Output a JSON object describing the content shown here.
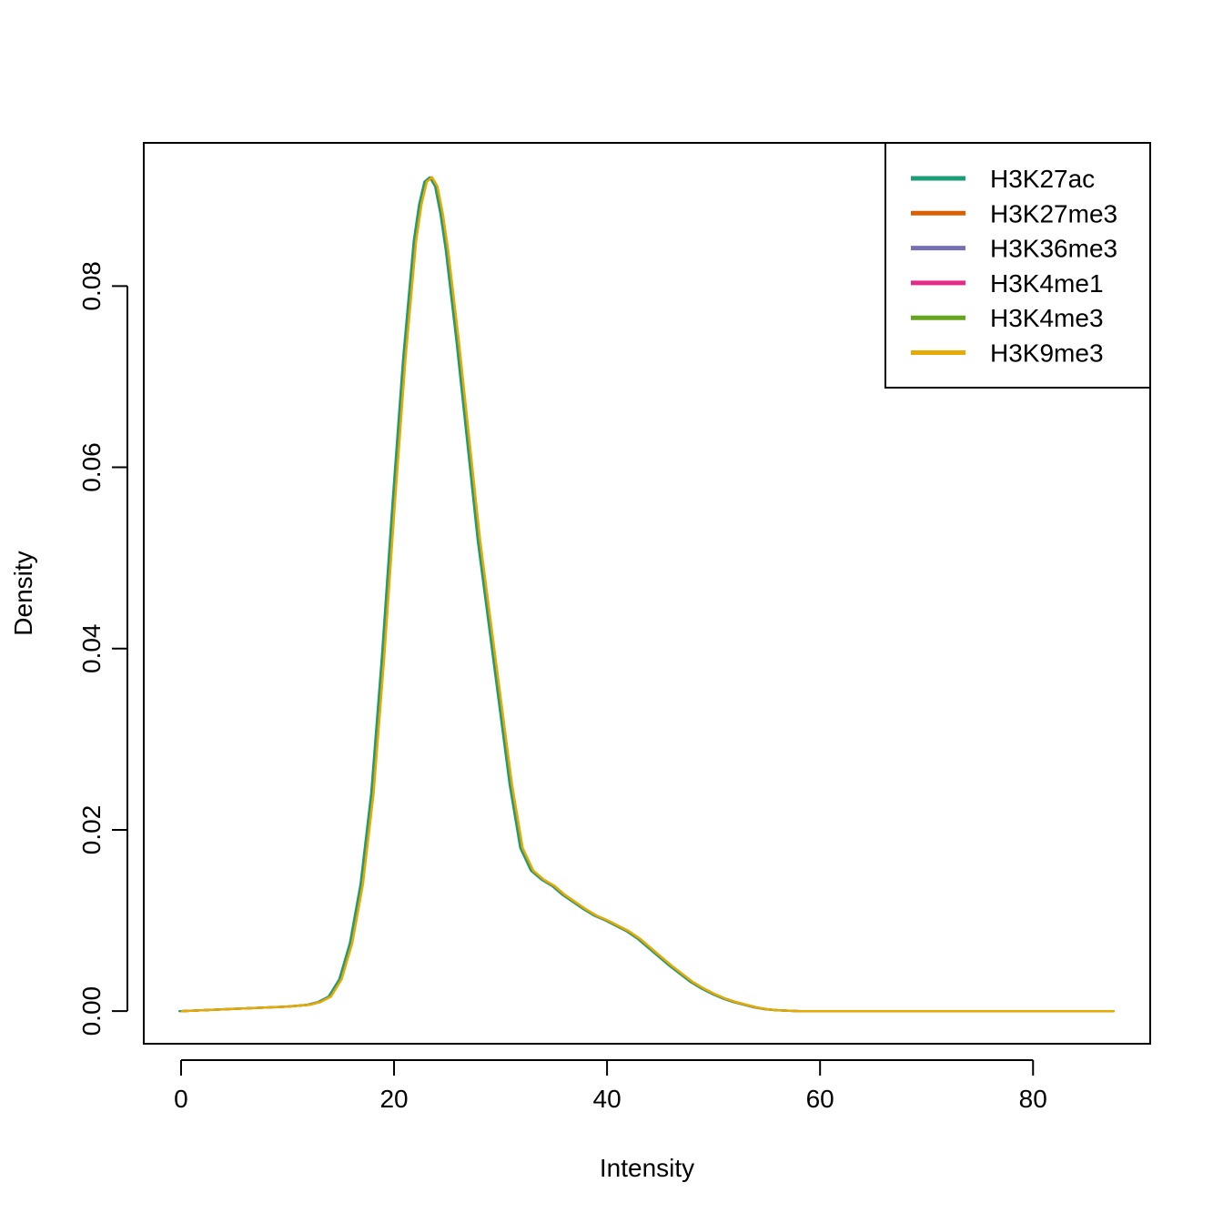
{
  "chart_data": {
    "type": "line",
    "title": "",
    "xlabel": "Intensity",
    "ylabel": "Density",
    "xlim": [
      -3.5,
      91
    ],
    "ylim": [
      -0.0036,
      0.0958
    ],
    "xticks": [
      {
        "value": 0,
        "label": "0"
      },
      {
        "value": 20,
        "label": "20"
      },
      {
        "value": 40,
        "label": "40"
      },
      {
        "value": 60,
        "label": "60"
      },
      {
        "value": 80,
        "label": "80"
      }
    ],
    "yticks": [
      {
        "value": 0.0,
        "label": "0.00"
      },
      {
        "value": 0.02,
        "label": "0.02"
      },
      {
        "value": 0.04,
        "label": "0.04"
      },
      {
        "value": 0.06,
        "label": "0.06"
      },
      {
        "value": 0.08,
        "label": "0.08"
      }
    ],
    "grid": false,
    "legend_position": "top-right",
    "series": [
      {
        "name": "H3K27ac",
        "color": "#1b9e77",
        "shift": -0.15
      },
      {
        "name": "H3K27me3",
        "color": "#d95f02",
        "shift": 0.05
      },
      {
        "name": "H3K36me3",
        "color": "#7570b3",
        "shift": 0.05
      },
      {
        "name": "H3K4me1",
        "color": "#e7298a",
        "shift": 0.05
      },
      {
        "name": "H3K4me3",
        "color": "#66a61e",
        "shift": 0.05
      },
      {
        "name": "H3K9me3",
        "color": "#e6ab02",
        "shift": 0.08
      }
    ],
    "curve": {
      "x": [
        0,
        2,
        4,
        6,
        8,
        10,
        12,
        13,
        14,
        15,
        16,
        17,
        18,
        19,
        20,
        21,
        22,
        22.5,
        23,
        23.5,
        24,
        24.5,
        25,
        26,
        27,
        28,
        29,
        30,
        31,
        32,
        33,
        34,
        35,
        36,
        37,
        38,
        39,
        40,
        41,
        42,
        43,
        44,
        45,
        46,
        47,
        48,
        49,
        50,
        51,
        52,
        53,
        54,
        55,
        56,
        57,
        58,
        60,
        65,
        70,
        75,
        80,
        85,
        87.5
      ],
      "y": [
        0.0,
        0.0001,
        0.0002,
        0.0003,
        0.0004,
        0.0005,
        0.0007,
        0.001,
        0.0016,
        0.0035,
        0.0075,
        0.014,
        0.024,
        0.039,
        0.056,
        0.072,
        0.085,
        0.089,
        0.0915,
        0.092,
        0.091,
        0.088,
        0.084,
        0.074,
        0.063,
        0.052,
        0.043,
        0.034,
        0.025,
        0.018,
        0.0155,
        0.0145,
        0.0138,
        0.0128,
        0.012,
        0.0112,
        0.0105,
        0.01,
        0.0094,
        0.0088,
        0.008,
        0.007,
        0.006,
        0.005,
        0.0041,
        0.0032,
        0.0025,
        0.0019,
        0.0014,
        0.001,
        0.0007,
        0.0004,
        0.0002,
        0.0001,
        5e-05,
        0.0,
        0.0,
        0.0,
        0.0,
        0.0,
        0.0,
        0.0,
        0.0
      ]
    }
  }
}
